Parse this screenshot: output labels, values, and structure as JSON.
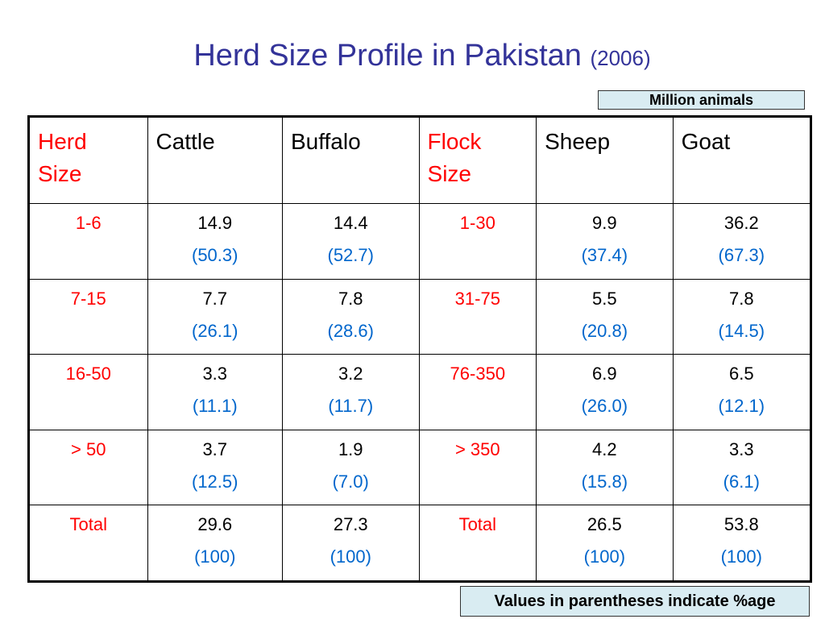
{
  "title": {
    "main": "Herd Size Profile in Pakistan ",
    "year": "(2006)"
  },
  "unit_label": "Million animals",
  "table": {
    "headers": {
      "herd_size_line1": "Herd",
      "herd_size_line2": "Size",
      "cattle": "Cattle",
      "buffalo": "Buffalo",
      "flock_size_line1": "Flock",
      "flock_size_line2": "Size",
      "sheep": "Sheep",
      "goat": "Goat"
    },
    "rows": [
      {
        "herd": "1-6",
        "cattle": "14.9",
        "cattle_pct": "(50.3)",
        "buffalo": "14.4",
        "buffalo_pct": "(52.7)",
        "flock": "1-30",
        "sheep": "9.9",
        "sheep_pct": "(37.4)",
        "goat": "36.2",
        "goat_pct": "(67.3)"
      },
      {
        "herd": "7-15",
        "cattle": "7.7",
        "cattle_pct": "(26.1)",
        "buffalo": "7.8",
        "buffalo_pct": "(28.6)",
        "flock": "31-75",
        "sheep": "5.5",
        "sheep_pct": "(20.8)",
        "goat": "7.8",
        "goat_pct": "(14.5)"
      },
      {
        "herd": "16-50",
        "cattle": "3.3",
        "cattle_pct": "(11.1)",
        "buffalo": "3.2",
        "buffalo_pct": "(11.7)",
        "flock": "76-350",
        "sheep": "6.9",
        "sheep_pct": "(26.0)",
        "goat": "6.5",
        "goat_pct": "(12.1)"
      },
      {
        "herd": "> 50",
        "cattle": "3.7",
        "cattle_pct": "(12.5)",
        "buffalo": "1.9",
        "buffalo_pct": "(7.0)",
        "flock": "> 350",
        "sheep": "4.2",
        "sheep_pct": "(15.8)",
        "goat": "3.3",
        "goat_pct": "(6.1)"
      },
      {
        "herd": "Total",
        "cattle": "29.6",
        "cattle_pct": "(100)",
        "buffalo": "27.3",
        "buffalo_pct": "(100)",
        "flock": "Total",
        "sheep": "26.5",
        "sheep_pct": "(100)",
        "goat": "53.8",
        "goat_pct": "(100)"
      }
    ]
  },
  "footnote": "Values in parentheses indicate %age",
  "colors": {
    "title": "#333399",
    "size_labels": "#ff0000",
    "percentages": "#0066cc",
    "label_box_fill": "#d9ecf2"
  }
}
